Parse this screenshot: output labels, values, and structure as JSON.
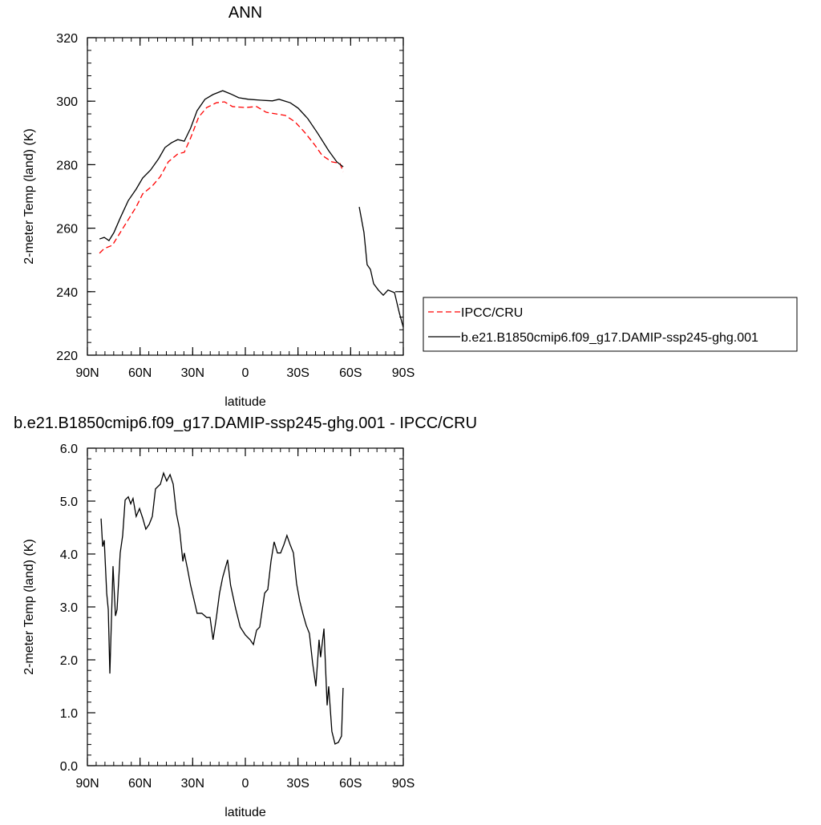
{
  "chart_data": [
    {
      "type": "line",
      "title": "ANN",
      "x_label": "latitude",
      "y_label": "2-meter Temp (land) (K)",
      "xlim": [
        90,
        -90
      ],
      "xticks": [
        {
          "value": 90,
          "label": "90N"
        },
        {
          "value": 60,
          "label": "60N"
        },
        {
          "value": 30,
          "label": "30N"
        },
        0,
        {
          "value": -30,
          "label": "30S"
        },
        {
          "value": -60,
          "label": "60S"
        },
        {
          "value": -90,
          "label": "90S"
        }
      ],
      "ylim": [
        220,
        320
      ],
      "yticks": [
        220,
        240,
        260,
        280,
        300,
        320
      ],
      "legend": "right",
      "series": [
        {
          "name": "IPCC/CRU",
          "color": "#ff0000",
          "line_style": "dashed",
          "x": [
            83.1,
            80.4,
            75.8,
            71.3,
            66.7,
            62.2,
            58.5,
            53.0,
            48.4,
            43.9,
            38.5,
            34.8,
            31.2,
            26.6,
            22.0,
            16.5,
            11.9,
            7.3,
            0.0,
            -6.4,
            -11.9,
            -17.4,
            -22.8,
            -28.3,
            -33.8,
            -39.3,
            -43.8,
            -49.3,
            -53.9,
            -55.7
          ],
          "values": [
            252.1,
            253.6,
            254.6,
            258.6,
            262.7,
            266.7,
            270.8,
            273.3,
            276.3,
            280.9,
            283.4,
            283.9,
            288.4,
            295.0,
            298.0,
            299.5,
            299.8,
            298.3,
            298.0,
            298.3,
            296.5,
            296.0,
            295.5,
            293.5,
            290.2,
            286.4,
            282.9,
            280.9,
            280.4,
            277.8
          ]
        },
        {
          "name": "b.e21.B1850cmip6.f09_g17.DAMIP-ssp245-ghg.001",
          "color": "#000000",
          "line_style": "solid",
          "x": [
            83.1,
            80.4,
            77.7,
            74.9,
            71.3,
            66.7,
            62.2,
            58.5,
            54.0,
            49.4,
            45.8,
            42.1,
            38.5,
            34.8,
            31.2,
            27.5,
            23.0,
            18.4,
            12.9,
            8.4,
            3.8,
            -1.7,
            -9.0,
            -15.4,
            -19.2,
            -25.6,
            -30.1,
            -35.6,
            -41.1,
            -47.5,
            -52.1,
            -55.8,
            -60.0,
            -64.9,
            -67.6,
            -69.4,
            -71.3,
            -73.1,
            -75.8,
            -78.6,
            -81.3,
            -85.0,
            -87.7,
            -90.0
          ],
          "values": [
            256.6,
            257.1,
            256.1,
            258.6,
            263.2,
            268.7,
            272.3,
            275.8,
            278.3,
            281.9,
            285.4,
            286.9,
            287.9,
            287.4,
            291.5,
            297.0,
            300.6,
            302.1,
            303.3,
            302.3,
            301.1,
            300.6,
            300.3,
            300.1,
            300.6,
            299.5,
            297.8,
            294.5,
            290.0,
            284.4,
            280.9,
            279.3,
            null,
            266.7,
            258.6,
            248.5,
            247.0,
            242.5,
            240.5,
            238.9,
            240.5,
            239.7,
            233.4,
            228.8
          ]
        }
      ]
    },
    {
      "type": "line",
      "title": "b.e21.B1850cmip6.f09_g17.DAMIP-ssp245-ghg.001 - IPCC/CRU",
      "x_label": "latitude",
      "y_label": "2-meter Temp (land) (K)",
      "xlim": [
        90,
        -90
      ],
      "xticks": [
        {
          "value": 90,
          "label": "90N"
        },
        {
          "value": 60,
          "label": "60N"
        },
        {
          "value": 30,
          "label": "30N"
        },
        0,
        {
          "value": -30,
          "label": "30S"
        },
        {
          "value": -60,
          "label": "60S"
        },
        {
          "value": -90,
          "label": "90S"
        }
      ],
      "ylim": [
        0,
        6
      ],
      "yticks": [
        {
          "value": 0,
          "label": "0.0"
        },
        {
          "value": 1,
          "label": "1.0"
        },
        {
          "value": 2,
          "label": "2.0"
        },
        {
          "value": 3,
          "label": "3.0"
        },
        {
          "value": 4,
          "label": "4.0"
        },
        {
          "value": 5,
          "label": "5.0"
        },
        {
          "value": 6,
          "label": "6.0"
        }
      ],
      "series": [
        {
          "color": "#000000",
          "line_style": "solid",
          "x": [
            82.2,
            81.3,
            80.4,
            79.0,
            78.1,
            77.2,
            75.4,
            74.0,
            73.1,
            71.3,
            69.9,
            68.5,
            66.7,
            65.3,
            64.0,
            62.2,
            60.3,
            58.5,
            56.7,
            54.8,
            53.0,
            51.2,
            48.4,
            46.6,
            44.8,
            42.9,
            41.1,
            39.3,
            37.5,
            35.6,
            34.8,
            32.9,
            31.2,
            29.3,
            27.5,
            24.8,
            22.0,
            20.1,
            18.4,
            16.5,
            14.7,
            12.9,
            10.1,
            8.4,
            5.6,
            2.9,
            0.0,
            -2.7,
            -4.6,
            -6.4,
            -8.2,
            -11.0,
            -12.8,
            -14.6,
            -16.4,
            -18.3,
            -20.1,
            -21.9,
            -23.7,
            -25.6,
            -27.4,
            -29.2,
            -31.0,
            -32.9,
            -34.7,
            -36.5,
            -38.3,
            -40.2,
            -42.0,
            -42.9,
            -44.8,
            -46.6,
            -47.5,
            -49.3,
            -51.1,
            -53.0,
            -54.8,
            -55.7
          ],
          "values": [
            4.67,
            4.14,
            4.26,
            3.26,
            2.95,
            1.74,
            3.77,
            2.83,
            2.95,
            4.02,
            4.35,
            5.02,
            5.08,
            4.95,
            5.05,
            4.71,
            4.86,
            4.68,
            4.47,
            4.56,
            4.71,
            5.23,
            5.32,
            5.53,
            5.38,
            5.5,
            5.32,
            4.77,
            4.47,
            3.86,
            4.02,
            3.71,
            3.41,
            3.14,
            2.88,
            2.88,
            2.8,
            2.8,
            2.38,
            2.8,
            3.26,
            3.56,
            3.89,
            3.41,
            2.98,
            2.62,
            2.47,
            2.38,
            2.29,
            2.56,
            2.62,
            3.26,
            3.33,
            3.86,
            4.23,
            4.02,
            4.02,
            4.17,
            4.35,
            4.17,
            4.02,
            3.44,
            3.11,
            2.86,
            2.65,
            2.5,
            1.95,
            1.5,
            2.38,
            2.05,
            2.59,
            1.14,
            1.5,
            0.65,
            0.41,
            0.44,
            0.56,
            1.47
          ]
        }
      ]
    }
  ]
}
